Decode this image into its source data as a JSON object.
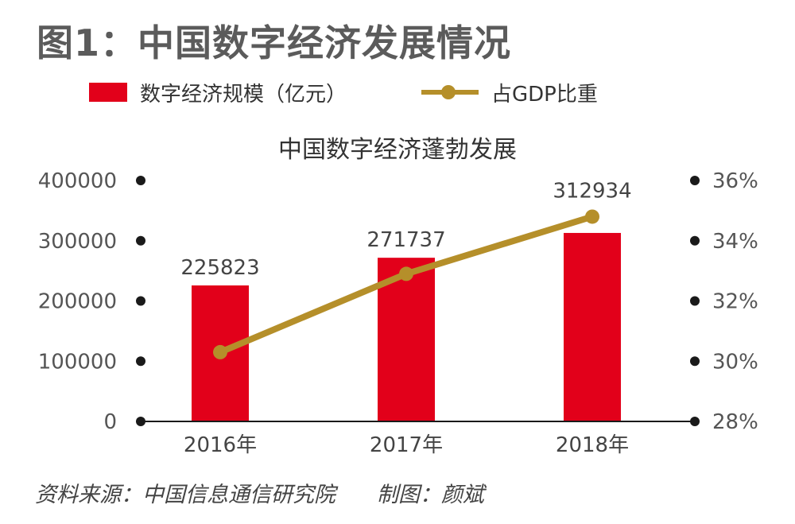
{
  "figure_title": "图1：中国数字经济发展情况",
  "legend": {
    "bar_label": "数字经济规模（亿元）",
    "line_label": "占GDP比重"
  },
  "source": {
    "data_source": "资料来源：中国信息通信研究院",
    "chart_by": "制图：颜斌"
  },
  "colors": {
    "bar": "#e2001a",
    "line": "#b58f2a",
    "axis": "#1a1a1a"
  },
  "chart_data": {
    "type": "bar",
    "title": "中国数字经济蓬勃发展",
    "categories": [
      "2016年",
      "2017年",
      "2018年"
    ],
    "series": [
      {
        "name": "数字经济规模（亿元）",
        "type": "bar",
        "axis": "left",
        "values": [
          225823,
          271737,
          312934
        ],
        "labels": [
          "225823",
          "271737",
          "312934"
        ]
      },
      {
        "name": "占GDP比重",
        "type": "line",
        "axis": "right",
        "values": [
          30.3,
          32.9,
          34.8
        ]
      }
    ],
    "y_left": {
      "ylim": [
        0,
        400000
      ],
      "ticks": [
        0,
        100000,
        200000,
        300000,
        400000
      ],
      "tick_labels": [
        "0",
        "100000",
        "200000",
        "300000",
        "400000"
      ]
    },
    "y_right": {
      "ylim": [
        28,
        36
      ],
      "ticks": [
        28,
        30,
        32,
        34,
        36
      ],
      "tick_labels": [
        "28%",
        "30%",
        "32%",
        "34%",
        "36%"
      ]
    },
    "grid": false,
    "legend_position": "top-left"
  }
}
